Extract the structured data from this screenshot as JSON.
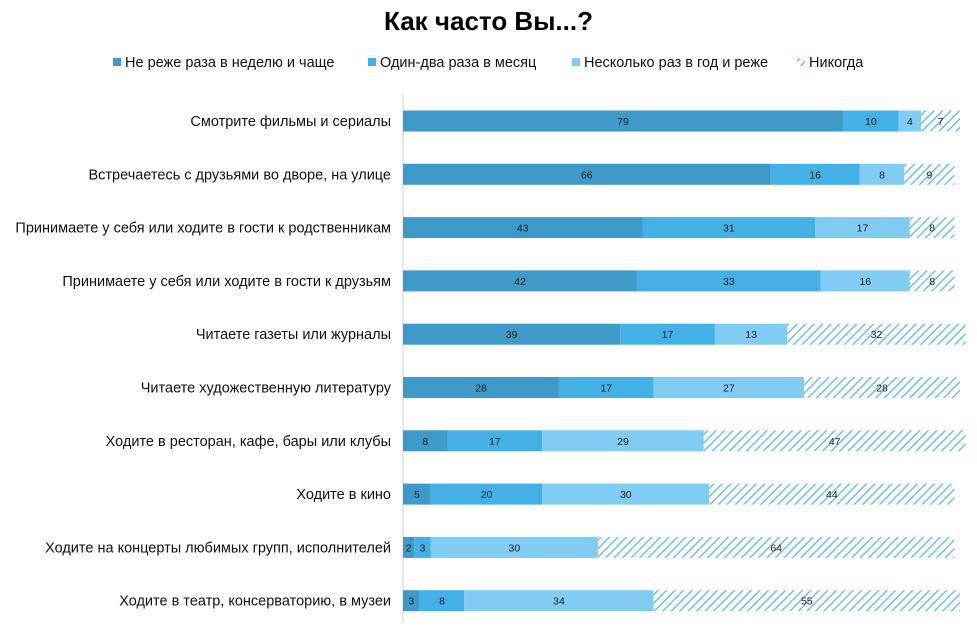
{
  "chart_data": {
    "type": "bar",
    "orientation": "horizontal",
    "stacked": true,
    "title": "Как часто Вы...?",
    "xlim": [
      0,
      100
    ],
    "legend_position": "top",
    "grid": false,
    "categories": [
      "Смотрите фильмы и сериалы",
      "Встречаетесь с друзьями во дворе, на улице",
      "Принимаете  у себя или ходите в гости к родственникам",
      "Принимаете  у себя или ходите в гости к друзьям",
      "Читаете газеты или журналы",
      "Читаете художественную литературу",
      "Ходите в ресторан, кафе, бары или клубы",
      "Ходите в кино",
      "Ходите на концерты любимых групп, исполнителей",
      "Ходите в театр, консерваторию, в музеи"
    ],
    "series": [
      {
        "name": "Не реже раза в неделю и чаще",
        "color": "#3f9ac9",
        "pattern": "solid",
        "values": [
          79,
          66,
          43,
          42,
          39,
          28,
          8,
          5,
          2,
          3
        ]
      },
      {
        "name": "Один-два раза в месяц",
        "color": "#43b0e6",
        "pattern": "solid",
        "values": [
          10,
          16,
          31,
          33,
          17,
          17,
          17,
          20,
          3,
          8
        ]
      },
      {
        "name": "Несколько раз в год и реже",
        "color": "#80ccf3",
        "pattern": "solid",
        "values": [
          4,
          8,
          17,
          16,
          13,
          27,
          29,
          30,
          30,
          34
        ]
      },
      {
        "name": "Никогда",
        "color": "#8fd0ef",
        "pattern": "hatched",
        "values": [
          7,
          9,
          8,
          8,
          32,
          28,
          47,
          44,
          64,
          55
        ]
      }
    ]
  }
}
